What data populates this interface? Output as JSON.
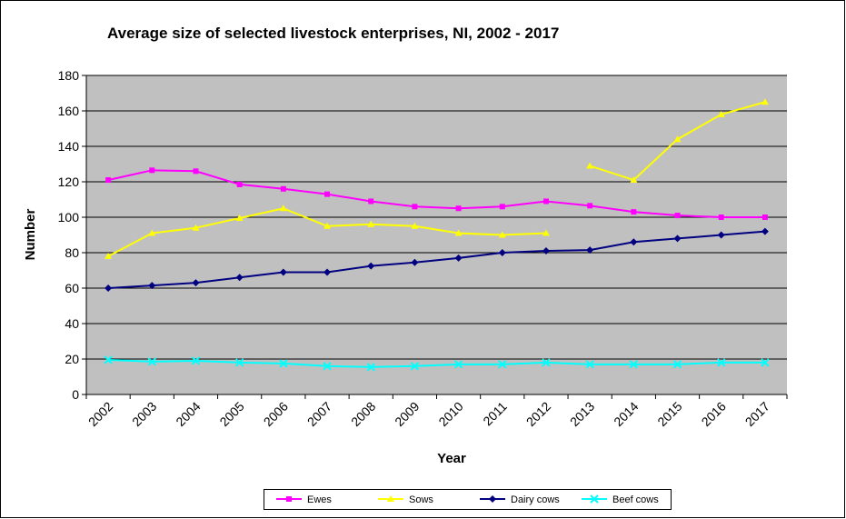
{
  "chart_data": {
    "type": "line",
    "title": "Average size of selected livestock enterprises, NI, 2002 - 2017",
    "x_label": "Year",
    "y_label": "Number",
    "categories": [
      "2002",
      "2003",
      "2004",
      "2005",
      "2006",
      "2007",
      "2008",
      "2009",
      "2010",
      "2011",
      "2012",
      "2013",
      "2014",
      "2015",
      "2016",
      "2017"
    ],
    "series": [
      {
        "name": "Ewes",
        "color": "#ff00ff",
        "marker": "square",
        "values": [
          121,
          126.5,
          126,
          118.5,
          116,
          113,
          109,
          106,
          105,
          106,
          109,
          106.5,
          103,
          101,
          100,
          100
        ]
      },
      {
        "name": "Sows",
        "color": "#ffff00",
        "marker": "triangle",
        "break_after": "2012",
        "values": [
          78,
          91,
          94,
          99.5,
          105,
          95,
          96,
          95,
          91,
          90,
          91,
          129,
          121,
          144,
          158,
          165
        ]
      },
      {
        "name": "Dairy cows",
        "color": "#000080",
        "marker": "diamond",
        "values": [
          60,
          61.5,
          63,
          66,
          69,
          69,
          72.5,
          74.5,
          77,
          80,
          81,
          81.5,
          86,
          88,
          90,
          92
        ]
      },
      {
        "name": "Beef cows",
        "color": "#00ffff",
        "marker": "x",
        "values": [
          19.5,
          18.5,
          19,
          18,
          17.5,
          16,
          15.5,
          16,
          17,
          17,
          18,
          17,
          17,
          17,
          18,
          18
        ]
      }
    ],
    "ylim": [
      0,
      180
    ],
    "yticks": [
      0,
      20,
      40,
      60,
      80,
      100,
      120,
      140,
      160,
      180
    ],
    "grid": true,
    "plot_background": "#c0c0c0",
    "legend": "bottom"
  }
}
